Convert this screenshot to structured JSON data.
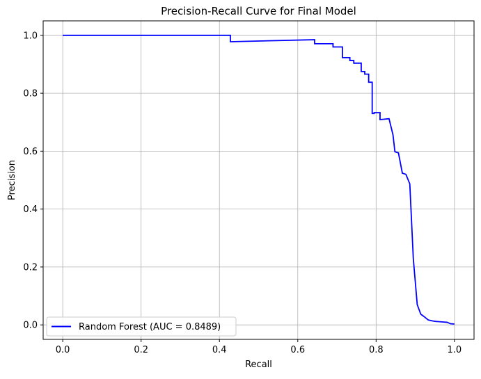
{
  "chart_data": {
    "type": "line",
    "title": "Precision-Recall Curve for Final Model",
    "xlabel": "Recall",
    "ylabel": "Precision",
    "xlim": [
      -0.05,
      1.05
    ],
    "ylim": [
      -0.05,
      1.05
    ],
    "x_ticks": [
      0.0,
      0.2,
      0.4,
      0.6,
      0.8,
      1.0
    ],
    "x_tick_labels": [
      "0.0",
      "0.2",
      "0.4",
      "0.6",
      "0.8",
      "1.0"
    ],
    "y_ticks": [
      0.0,
      0.2,
      0.4,
      0.6,
      0.8,
      1.0
    ],
    "y_tick_labels": [
      "0.0",
      "0.2",
      "0.4",
      "0.6",
      "0.8",
      "1.0"
    ],
    "grid": true,
    "legend_position": "lower-left",
    "series": [
      {
        "name": "Random Forest (AUC = 0.8489)",
        "color": "#0000ff",
        "x": [
          0.0,
          0.428,
          0.428,
          0.643,
          0.643,
          0.69,
          0.69,
          0.714,
          0.714,
          0.733,
          0.733,
          0.743,
          0.743,
          0.762,
          0.762,
          0.771,
          0.771,
          0.781,
          0.781,
          0.79,
          0.79,
          0.795,
          0.795,
          0.81,
          0.81,
          0.833,
          0.833,
          0.843,
          0.843,
          0.848,
          0.848,
          0.857,
          0.857,
          0.867,
          0.867,
          0.876,
          0.876,
          0.886,
          0.886,
          0.895,
          0.895,
          0.905,
          0.905,
          0.914,
          0.914,
          0.924,
          0.924,
          0.933,
          0.933,
          0.943,
          0.943,
          0.952,
          0.952,
          0.962,
          0.962,
          0.971,
          0.971,
          0.981,
          0.981,
          0.99,
          0.99,
          1.0
        ],
        "y": [
          1.0,
          1.0,
          0.978,
          0.985,
          0.971,
          0.971,
          0.96,
          0.96,
          0.923,
          0.923,
          0.913,
          0.913,
          0.904,
          0.904,
          0.875,
          0.875,
          0.866,
          0.866,
          0.838,
          0.838,
          0.73,
          0.73,
          0.733,
          0.733,
          0.709,
          0.712,
          0.712,
          0.657,
          0.657,
          0.598,
          0.598,
          0.594,
          0.594,
          0.524,
          0.524,
          0.52,
          0.52,
          0.487,
          0.487,
          0.228,
          0.228,
          0.07,
          0.07,
          0.037,
          0.037,
          0.027,
          0.027,
          0.017,
          0.017,
          0.014,
          0.014,
          0.012,
          0.012,
          0.011,
          0.011,
          0.01,
          0.01,
          0.009,
          0.009,
          0.004,
          0.004,
          0.003
        ]
      }
    ]
  }
}
